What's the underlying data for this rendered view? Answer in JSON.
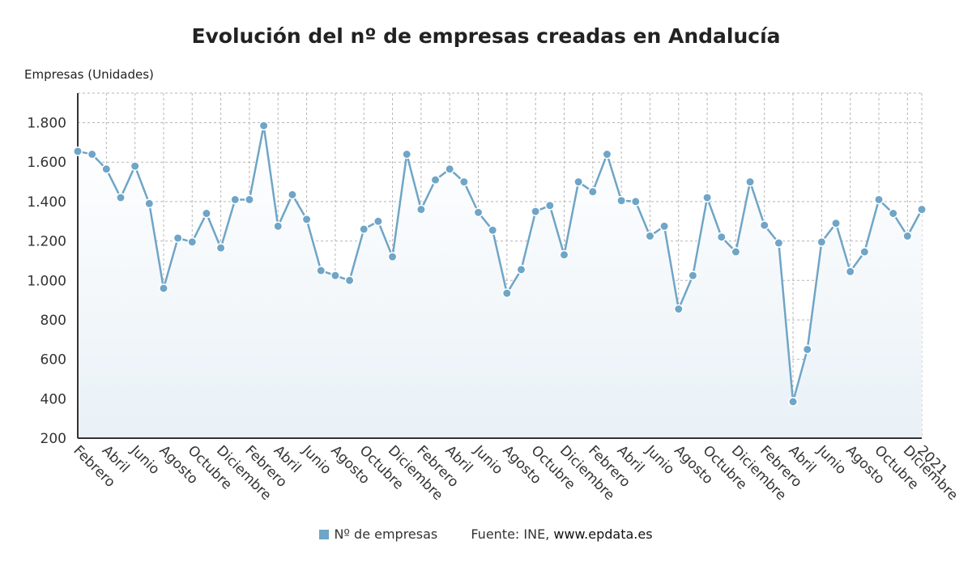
{
  "chart_data": {
    "type": "line",
    "title": "Evolución del nº de empresas creadas en Andalucía",
    "ylabel": "Empresas (Unidades)",
    "xlabel": "",
    "ylim": [
      200,
      1950
    ],
    "yticks": [
      200,
      400,
      600,
      800,
      1000,
      1200,
      1400,
      1600,
      1800
    ],
    "ytick_labels": [
      "200",
      "400",
      "600",
      "800",
      "1.000",
      "1.200",
      "1.400",
      "1.600",
      "1.800"
    ],
    "xtick_labels": [
      "Febrero",
      "Abril",
      "Junio",
      "Agosto",
      "Octubre",
      "Diciembre",
      "Febrero",
      "Abril",
      "Junio",
      "Agosto",
      "Octubre",
      "Diciembre",
      "Febrero",
      "Abril",
      "Junio",
      "Agosto",
      "Octubre",
      "Diciembre",
      "Febrero",
      "Abril",
      "Junio",
      "Agosto",
      "Octubre",
      "Diciembre",
      "Febrero",
      "Abril",
      "Junio",
      "Agosto",
      "Octubre",
      "Diciembre",
      "2021"
    ],
    "grid": true,
    "legend_position": "bottom",
    "color": "#6fa5c6",
    "series": [
      {
        "name": "Nº de empresas",
        "values": [
          1655,
          1640,
          1565,
          1420,
          1580,
          1390,
          960,
          1215,
          1195,
          1340,
          1165,
          1410,
          1410,
          1785,
          1275,
          1435,
          1310,
          1050,
          1025,
          1000,
          1260,
          1300,
          1120,
          1640,
          1360,
          1510,
          1565,
          1500,
          1345,
          1255,
          935,
          1055,
          1350,
          1380,
          1130,
          1500,
          1450,
          1640,
          1405,
          1400,
          1225,
          1275,
          855,
          1025,
          1420,
          1220,
          1145,
          1500,
          1280,
          1190,
          385,
          650,
          1195,
          1290,
          1045,
          1145,
          1410,
          1340,
          1225,
          1360
        ]
      }
    ]
  },
  "legend": {
    "series_label": "Nº de empresas",
    "source_label": "Fuente: INE,",
    "source_site": "www.epdata.es"
  }
}
